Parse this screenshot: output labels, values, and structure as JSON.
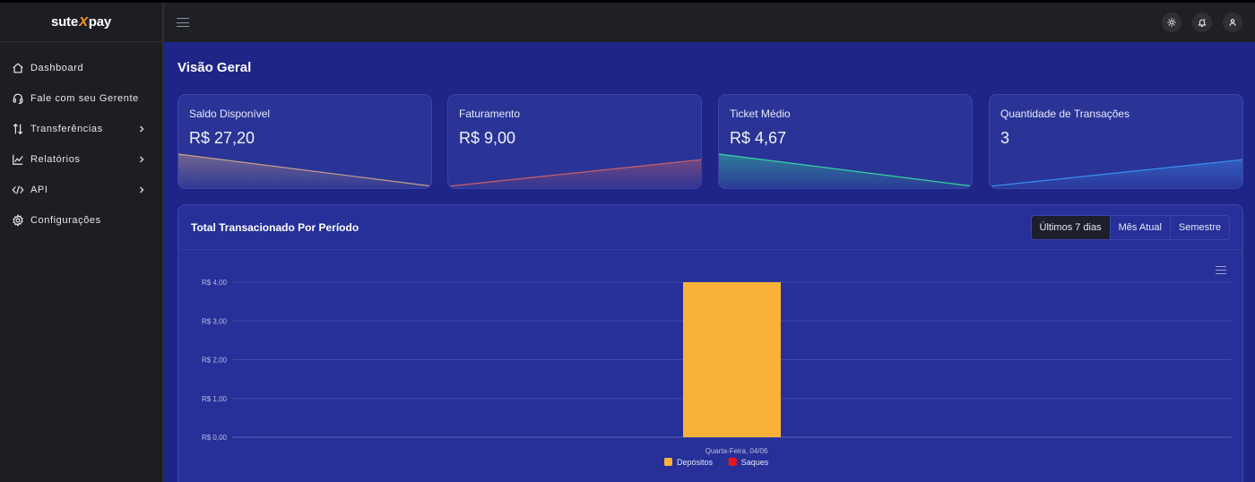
{
  "brand": {
    "part1": "sute",
    "x": "X",
    "part2": "pay"
  },
  "sidebar": {
    "items": [
      {
        "label": "Dashboard",
        "icon": "home-icon",
        "chevron": false
      },
      {
        "label": "Fale com seu Gerente",
        "icon": "headset-icon",
        "chevron": false
      },
      {
        "label": "Transferências",
        "icon": "transfer-arrows-icon",
        "chevron": true
      },
      {
        "label": "Relatórios",
        "icon": "chart-line-icon",
        "chevron": true
      },
      {
        "label": "API",
        "icon": "code-icon",
        "chevron": true
      },
      {
        "label": "Configurações",
        "icon": "gear-icon",
        "chevron": false
      }
    ]
  },
  "topbar": {
    "icons": [
      "sun-icon",
      "bell-icon",
      "user-icon"
    ]
  },
  "page": {
    "title": "Visão Geral"
  },
  "cards": [
    {
      "title": "Saldo Disponível",
      "value": "R$ 27,20",
      "trend": "down",
      "color": "#c9a08a"
    },
    {
      "title": "Faturamento",
      "value": "R$ 9,00",
      "trend": "up",
      "color": "#c8606a"
    },
    {
      "title": "Ticket Médio",
      "value": "R$ 4,67",
      "trend": "down",
      "color": "#34d3a0"
    },
    {
      "title": "Quantidade de Transações",
      "value": "3",
      "trend": "up",
      "color": "#3a8ef0"
    }
  ],
  "panel": {
    "title": "Total Transacionado Por Período",
    "ranges": [
      "Últimos 7 dias",
      "Mês Atual",
      "Semestre"
    ],
    "active_range": 0
  },
  "chart_data": {
    "type": "bar",
    "categories": [
      "Quarta-Feira, 04/06"
    ],
    "series": [
      {
        "name": "Depósitos",
        "values": [
          4.0
        ],
        "color": "#f9b13a"
      },
      {
        "name": "Saques",
        "values": [
          0
        ],
        "color": "#e8141b"
      }
    ],
    "yticks": [
      "R$ 0,00",
      "R$ 1,00",
      "R$ 2,00",
      "R$ 3,00",
      "R$ 4,00"
    ],
    "ylim": [
      0,
      4
    ],
    "grid": true,
    "legend": "bottom"
  }
}
